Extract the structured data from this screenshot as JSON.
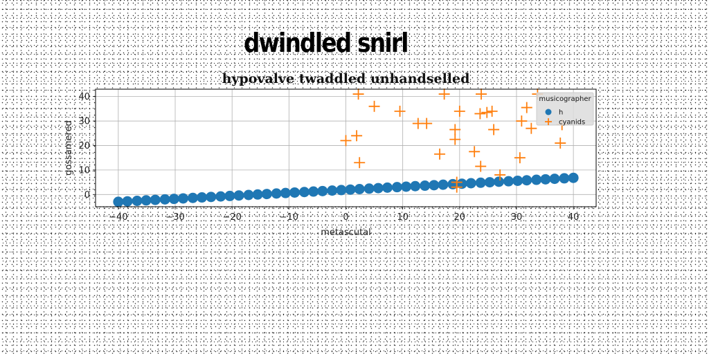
{
  "suptitle": "dwindled snirl",
  "chart_data": {
    "type": "scatter",
    "title": "hypovalve twaddled unhandselled",
    "xlabel": "metascutal",
    "ylabel": "gossamered",
    "xlim": [
      -44,
      44
    ],
    "ylim": [
      -5,
      43
    ],
    "xticks": [
      -40,
      -30,
      -20,
      -10,
      0,
      10,
      20,
      30,
      40
    ],
    "yticks": [
      0,
      10,
      20,
      30,
      40
    ],
    "grid": true,
    "legend": {
      "title": "musicographer",
      "placement": "top-right"
    },
    "series": [
      {
        "name": "h",
        "marker": "circle",
        "color": "#1f77b4",
        "x": [
          -40,
          -38.4,
          -36.7,
          -35.1,
          -33.5,
          -31.8,
          -30.2,
          -28.6,
          -26.9,
          -25.3,
          -23.7,
          -22,
          -20.4,
          -18.8,
          -17.1,
          -15.5,
          -13.9,
          -12.2,
          -10.6,
          -9,
          -7.3,
          -5.7,
          -4.1,
          -2.4,
          -0.8,
          0.8,
          2.4,
          4.1,
          5.7,
          7.3,
          9,
          10.6,
          12.2,
          13.9,
          15.5,
          17.1,
          18.8,
          20.4,
          22,
          23.7,
          25.3,
          26.9,
          28.6,
          30.2,
          31.8,
          33.5,
          35.1,
          36.7,
          38.4,
          40
        ],
        "y": [
          -3,
          -2.8,
          -2.6,
          -2.4,
          -2.2,
          -2,
          -1.8,
          -1.6,
          -1.4,
          -1.2,
          -1,
          -0.8,
          -0.6,
          -0.4,
          -0.2,
          0,
          0.2,
          0.4,
          0.6,
          0.8,
          1,
          1.2,
          1.4,
          1.6,
          1.8,
          2,
          2.2,
          2.4,
          2.6,
          2.8,
          3,
          3.2,
          3.4,
          3.6,
          3.8,
          4,
          4.2,
          4.4,
          4.6,
          4.8,
          5,
          5.2,
          5.4,
          5.6,
          5.8,
          6,
          6.2,
          6.4,
          6.6,
          6.8
        ]
      },
      {
        "name": "cyanids",
        "marker": "plus",
        "color": "#ff7f0e",
        "x": [
          2.2,
          5,
          9.5,
          12.7,
          14.2,
          17.3,
          16.5,
          19.2,
          19.2,
          20,
          19.5,
          22.6,
          23.7,
          23.8,
          23.6,
          24.8,
          25.7,
          26,
          27.1,
          30.6,
          30.9,
          31.8,
          32.6,
          33.7,
          37.7,
          38,
          0,
          1.9,
          2.4,
          19.5
        ],
        "y": [
          41,
          36,
          34,
          29,
          29,
          41,
          16.5,
          22.5,
          26.5,
          34,
          5,
          17.5,
          11.5,
          41,
          33,
          33.5,
          34,
          26.5,
          8,
          15,
          30,
          35.5,
          27,
          41,
          21,
          28.5,
          22,
          24,
          13,
          3
        ]
      }
    ]
  }
}
